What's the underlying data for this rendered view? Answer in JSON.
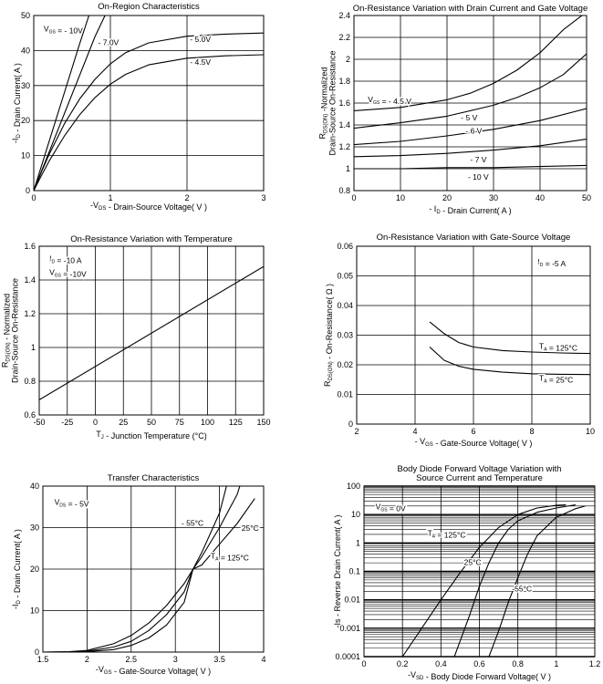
{
  "chart_data": [
    {
      "id": "c1",
      "type": "line",
      "title": "On-Region Characteristics",
      "xlabel": "-V_DS - Drain-Source Voltage( V )",
      "ylabel": "-I_D - Drain Current( A )",
      "xlim": [
        0,
        3
      ],
      "ylim": [
        0,
        50
      ],
      "xscale": "linear",
      "yscale": "linear",
      "xticks": [
        0,
        1,
        2,
        3
      ],
      "yticks": [
        0,
        10,
        20,
        30,
        40,
        50
      ],
      "grid": true,
      "series": [
        {
          "name": "- 10V",
          "x": [
            0,
            0.2,
            0.4,
            0.6,
            0.72
          ],
          "y": [
            0,
            14,
            28,
            42,
            50
          ]
        },
        {
          "name": "- 7.0V",
          "x": [
            0,
            0.2,
            0.4,
            0.6,
            0.8,
            0.93
          ],
          "y": [
            0,
            11,
            22,
            33,
            44,
            50
          ]
        },
        {
          "name": "- 5.0V",
          "x": [
            0,
            0.1,
            0.2,
            0.4,
            0.6,
            0.8,
            1.0,
            1.2,
            1.5,
            2.0,
            2.5,
            3.0
          ],
          "y": [
            0,
            5.3,
            10.3,
            19.1,
            26.2,
            31.8,
            36.2,
            39.4,
            42.2,
            44.1,
            44.7,
            45.0
          ]
        },
        {
          "name": "- 4.5V",
          "x": [
            0,
            0.1,
            0.2,
            0.4,
            0.6,
            0.8,
            1.0,
            1.2,
            1.5,
            2.0,
            2.5,
            3.0
          ],
          "y": [
            0,
            4.3,
            8.4,
            15.6,
            21.7,
            26.6,
            30.4,
            33.2,
            35.9,
            37.8,
            38.5,
            38.8
          ]
        }
      ],
      "annotations": [
        {
          "text": "V_GS = - 10V",
          "x": 0.13,
          "y": 45.5
        },
        {
          "text": "- 7.0V",
          "x": 0.84,
          "y": 41.5
        },
        {
          "text": "- 5.0V",
          "x": 2.04,
          "y": 42.4
        },
        {
          "text": "- 4.5V",
          "x": 2.04,
          "y": 35.9
        }
      ]
    },
    {
      "id": "c2",
      "type": "line",
      "title": "On-Resistance Variation with Drain Current and Gate Voltage",
      "xlabel": "- I_D - Drain Current( A )",
      "ylabel": "R_DS(ON) -Normalized Drain-Source On-Resistance",
      "xlim": [
        0,
        50
      ],
      "ylim": [
        0.8,
        2.4
      ],
      "xscale": "linear",
      "yscale": "linear",
      "xticks": [
        0,
        10,
        20,
        30,
        40,
        50
      ],
      "yticks": [
        0.8,
        1.0,
        1.2,
        1.4,
        1.6,
        1.8,
        2.0,
        2.2,
        2.4
      ],
      "grid": true,
      "series": [
        {
          "name": "V_GS = - 4.5 V",
          "x": [
            0,
            10,
            20,
            25,
            30,
            35,
            40,
            45,
            49
          ],
          "y": [
            1.53,
            1.56,
            1.63,
            1.69,
            1.78,
            1.9,
            2.06,
            2.27,
            2.4
          ]
        },
        {
          "name": "- 5 V",
          "x": [
            0,
            10,
            20,
            30,
            35,
            40,
            45,
            50
          ],
          "y": [
            1.37,
            1.42,
            1.48,
            1.58,
            1.65,
            1.74,
            1.86,
            2.05
          ]
        },
        {
          "name": "- 6 V",
          "x": [
            0,
            10,
            20,
            30,
            40,
            50
          ],
          "y": [
            1.22,
            1.25,
            1.3,
            1.36,
            1.44,
            1.55
          ]
        },
        {
          "name": "- 7 V",
          "x": [
            0,
            10,
            20,
            30,
            40,
            50
          ],
          "y": [
            1.11,
            1.12,
            1.14,
            1.17,
            1.21,
            1.27
          ]
        },
        {
          "name": "- 10 V",
          "x": [
            0,
            10,
            20,
            30,
            40,
            50
          ],
          "y": [
            1.0,
            1.0,
            1.01,
            1.01,
            1.02,
            1.03
          ]
        }
      ],
      "annotations": [
        {
          "text": "V_GS = - 4.5 V",
          "x": 3,
          "y": 1.61
        },
        {
          "text": "- 5 V",
          "x": 23,
          "y": 1.44
        },
        {
          "text": "- 6 V",
          "x": 24,
          "y": 1.32
        },
        {
          "text": "- 7 V",
          "x": 25,
          "y": 1.06
        },
        {
          "text": "- 10 V",
          "x": 24.5,
          "y": 0.9
        }
      ]
    },
    {
      "id": "c3",
      "type": "line",
      "title": "On-Resistance Variation with Temperature",
      "xlabel": "T_J - Junction Temperature (°C)",
      "ylabel": "R_DS(ON) - Normalized Drain-Source On-Resistance",
      "xlim": [
        -50,
        150
      ],
      "ylim": [
        0.6,
        1.6
      ],
      "xscale": "linear",
      "yscale": "linear",
      "xticks": [
        -50,
        -25,
        0,
        25,
        50,
        75,
        100,
        125,
        150
      ],
      "yticks": [
        0.6,
        0.8,
        1.0,
        1.2,
        1.4,
        1.6
      ],
      "grid": true,
      "series": [
        {
          "name": "I_D = -10 A, V_GS = -10V",
          "x": [
            -50,
            150
          ],
          "y": [
            0.69,
            1.48
          ]
        }
      ],
      "annotations": [
        {
          "text": "I_D = -10 A",
          "x": -41,
          "y": 1.51
        },
        {
          "text": "V_GS = -10V",
          "x": -41,
          "y": 1.43
        }
      ]
    },
    {
      "id": "c4",
      "type": "line",
      "title": "On-Resistance Variation with Gate-Source Voltage",
      "xlabel": "- V_GS - Gate-Source Voltage( V )",
      "ylabel": "R_DS(ON) - On-Resistance( Ω )",
      "xlim": [
        2,
        10
      ],
      "ylim": [
        0,
        0.06
      ],
      "xscale": "linear",
      "yscale": "linear",
      "xticks": [
        2,
        4,
        6,
        8,
        10
      ],
      "yticks": [
        0,
        0.01,
        0.02,
        0.03,
        0.04,
        0.05,
        0.06
      ],
      "grid": true,
      "series": [
        {
          "name": "T_A = 125°C",
          "x": [
            4.5,
            5,
            5.5,
            6,
            7,
            8,
            9,
            10
          ],
          "y": [
            0.0345,
            0.0305,
            0.0275,
            0.026,
            0.0248,
            0.0243,
            0.024,
            0.0238
          ]
        },
        {
          "name": "T_A = 25°C",
          "x": [
            4.5,
            5,
            5.5,
            6,
            7,
            8,
            9,
            10
          ],
          "y": [
            0.026,
            0.0215,
            0.0195,
            0.0185,
            0.0175,
            0.017,
            0.0168,
            0.0167
          ]
        }
      ],
      "annotations": [
        {
          "text": "I_D = -5 A",
          "x": 8.2,
          "y": 0.0538
        },
        {
          "text": "T_A = 125°C",
          "x": 8.25,
          "y": 0.0254
        },
        {
          "text": "T_A = 25°C",
          "x": 8.25,
          "y": 0.0146
        }
      ]
    },
    {
      "id": "c5",
      "type": "line",
      "title": "Transfer Characteristics",
      "xlabel": "-V_GS - Gate-Source Voltage( V )",
      "ylabel": "-I_D - Drain Current( A )",
      "xlim": [
        1.5,
        4
      ],
      "ylim": [
        0,
        40
      ],
      "xscale": "linear",
      "yscale": "linear",
      "xticks": [
        1.5,
        2,
        2.5,
        3,
        3.5,
        4
      ],
      "yticks": [
        0,
        10,
        20,
        30,
        40
      ],
      "grid": true,
      "series": [
        {
          "name": "- 55°C",
          "x": [
            1.5,
            1.8,
            2.0,
            2.3,
            2.5,
            2.7,
            2.9,
            3.1,
            3.2,
            3.3,
            3.5,
            3.58
          ],
          "y": [
            0,
            0.1,
            0.4,
            2.0,
            4.0,
            7.0,
            11.2,
            16.5,
            20.0,
            24.0,
            33.5,
            40
          ]
        },
        {
          "name": "25°C",
          "x": [
            1.5,
            1.8,
            2.0,
            2.3,
            2.5,
            2.7,
            2.9,
            3.1,
            3.2,
            3.3,
            3.5,
            3.7,
            3.73
          ],
          "y": [
            0,
            0.05,
            0.2,
            1.2,
            2.6,
            5.2,
            9.0,
            14.5,
            20.0,
            23.0,
            30.0,
            38.0,
            40
          ]
        },
        {
          "name": "T_A = 125°C",
          "x": [
            1.5,
            1.8,
            2.0,
            2.3,
            2.5,
            2.7,
            2.9,
            3.1,
            3.2,
            3.3,
            3.5,
            3.7,
            3.9
          ],
          "y": [
            0,
            0.02,
            0.1,
            0.6,
            1.6,
            3.4,
            6.5,
            12.0,
            20.0,
            21.0,
            26.0,
            31.0,
            37.0
          ]
        }
      ],
      "annotations": [
        {
          "text": "V_DS = - 5V",
          "x": 1.63,
          "y": 35.5
        },
        {
          "text": "- 55°C",
          "x": 3.07,
          "y": 30.4
        },
        {
          "text": "25°C",
          "x": 3.75,
          "y": 29.2
        },
        {
          "text": "T_A = 125°C",
          "x": 3.4,
          "y": 22.5
        }
      ]
    },
    {
      "id": "c6",
      "type": "line",
      "title": "Body Diode Forward Voltage Variation with Source Current and Temperature",
      "title_lines": [
        "Body Diode Forward Voltage Variation with",
        "Source Current and Temperature"
      ],
      "xlabel": "-V_SD - Body Diode Forward Voltage( V )",
      "ylabel": "-Is - Reverse Drain Current( A )",
      "xlim": [
        0,
        1.2
      ],
      "ylim": [
        0.0001,
        100
      ],
      "xscale": "linear",
      "yscale": "log",
      "xticks": [
        0,
        0.2,
        0.4,
        0.6,
        0.8,
        1.0,
        1.2
      ],
      "yticks": [
        0.0001,
        0.001,
        0.01,
        0.1,
        1,
        10,
        100
      ],
      "ytick_labels": [
        "0.0001",
        "0.001",
        "0.01",
        "0.1",
        "1",
        "10",
        "100"
      ],
      "grid": true,
      "series": [
        {
          "name": "T_A = 125°C",
          "x": [
            0.2,
            0.3,
            0.4,
            0.5,
            0.6,
            0.7,
            0.8,
            0.9,
            1.0,
            1.05
          ],
          "y": [
            0.0001,
            0.001,
            0.01,
            0.09,
            0.7,
            3.5,
            10,
            17,
            21,
            22
          ]
        },
        {
          "name": "25°C",
          "x": [
            0.47,
            0.55,
            0.6,
            0.65,
            0.7,
            0.75,
            0.8,
            0.9,
            1.0,
            1.1
          ],
          "y": [
            0.0001,
            0.003,
            0.03,
            0.2,
            1.0,
            3.0,
            6.0,
            12,
            17,
            22
          ]
        },
        {
          "name": "-55°C",
          "x": [
            0.65,
            0.7,
            0.75,
            0.8,
            0.85,
            0.9,
            1.0,
            1.1,
            1.15
          ],
          "y": [
            0.0001,
            0.0008,
            0.008,
            0.06,
            0.4,
            1.8,
            8.0,
            16,
            20
          ]
        }
      ],
      "annotations": [
        {
          "text": "V_GS = 0V",
          "x": 0.06,
          "y": 15
        },
        {
          "text": "T_A = 125°C",
          "x": 0.33,
          "y": 1.8
        },
        {
          "text": "25°C",
          "x": 0.52,
          "y": 0.17
        },
        {
          "text": "-55°C",
          "x": 0.77,
          "y": 0.02
        }
      ]
    }
  ]
}
